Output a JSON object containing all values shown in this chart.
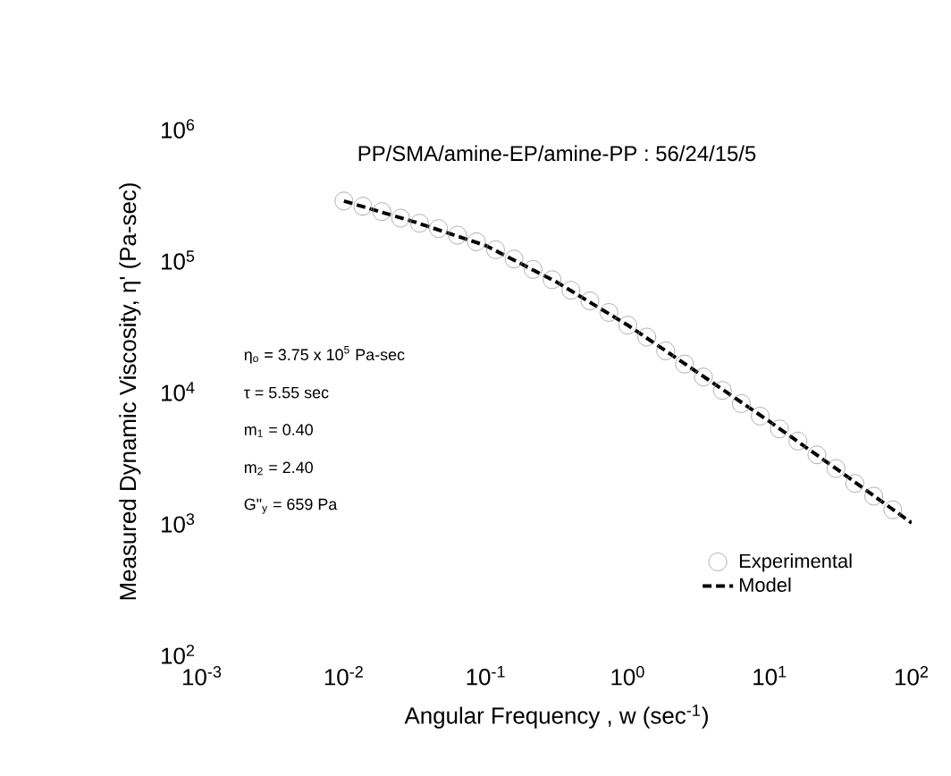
{
  "chart_data": {
    "type": "line",
    "title": "PP/SMA/amine-EP/amine-PP : 56/24/15/5",
    "xlabel": "Angular Frequency , w (sec$^{-1}$)",
    "ylabel": "Measured Dynamic Viscosity, η' (Pa-sec)",
    "log": "xy",
    "xlim": [
      0.001,
      100
    ],
    "ylim": [
      100,
      1000000
    ],
    "xticks": [
      {
        "value": 0.001,
        "label": "10$^{-3}$"
      },
      {
        "value": 0.01,
        "label": "10$^{-2}$"
      },
      {
        "value": 0.1,
        "label": "10$^{-1}$"
      },
      {
        "value": 1,
        "label": "10$^{0}$"
      },
      {
        "value": 10,
        "label": "10$^{1}$"
      },
      {
        "value": 100,
        "label": "10$^{2}$"
      }
    ],
    "yticks": [
      {
        "value": 100,
        "label": "10$^{2}$"
      },
      {
        "value": 1000,
        "label": "10$^{3}$"
      },
      {
        "value": 10000,
        "label": "10$^{4}$"
      },
      {
        "value": 100000,
        "label": "10$^{5}$"
      },
      {
        "value": 1000000,
        "label": "10$^{6}$"
      }
    ],
    "legend": "bottom right",
    "grid": false,
    "annotations": [
      "η$_{o}$ = 3.75 x 10$^{5}$ Pa-sec",
      "τ = 5.55 sec",
      "m$_{1}$ = 0.40",
      "m$_{2}$ = 2.40",
      "G\"$_{y}$ = 659 Pa"
    ],
    "series": [
      {
        "name": "Experimental",
        "type": "scatter",
        "marker": "circle",
        "color": "#999999",
        "x": [
          0.01,
          0.0136,
          0.0185,
          0.0251,
          0.0341,
          0.0464,
          0.0631,
          0.0857,
          0.117,
          0.158,
          0.215,
          0.293,
          0.398,
          0.541,
          0.736,
          1,
          1.36,
          1.85,
          2.51,
          3.41,
          4.64,
          6.31,
          8.57,
          11.7,
          15.8,
          21.5,
          29.3,
          39.8,
          54.1,
          73.6
        ],
        "values": [
          282000,
          257000,
          234000,
          209000,
          191000,
          174000,
          155000,
          138000,
          120000,
          102000,
          85000,
          71000,
          59000,
          49000,
          40000,
          32000,
          26000,
          20400,
          16200,
          12900,
          10200,
          8100,
          6500,
          5200,
          4200,
          3300,
          2600,
          2000,
          1600,
          1260
        ]
      },
      {
        "name": "Model",
        "type": "line",
        "line_style": "dashed",
        "marker": "none",
        "color": "#000000",
        "x": [
          0.01,
          0.0316,
          0.1,
          0.316,
          1,
          3.16,
          10,
          31.6,
          100
        ],
        "values": [
          282000,
          195000,
          129000,
          68000,
          32000,
          13800,
          5900,
          2450,
          1000
        ]
      }
    ]
  }
}
